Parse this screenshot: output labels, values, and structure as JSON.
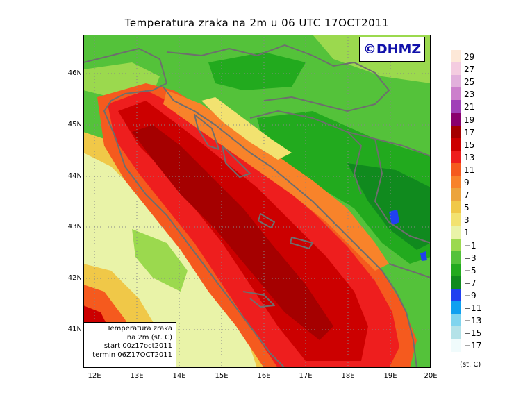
{
  "title": "Temperatura zraka na 2m u 06 UTC 17OCT2011",
  "copyright": "©DHMZ",
  "info_box": {
    "lines": [
      "Temperatura zraka",
      "na 2m (st. C)",
      "start 00z17oct2011",
      "termin 06Z17OCT2011"
    ]
  },
  "lat_labels": [
    "46N",
    "45N",
    "44N",
    "43N",
    "42N",
    "41N"
  ],
  "lon_labels": [
    "12E",
    "13E",
    "14E",
    "15E",
    "16E",
    "17E",
    "18E",
    "19E",
    "20E"
  ],
  "legend": {
    "labels": [
      "29",
      "27",
      "25",
      "23",
      "21",
      "19",
      "17",
      "15",
      "13",
      "11",
      "9",
      "7",
      "5",
      "3",
      "1",
      "−1",
      "−3",
      "−5",
      "−7",
      "−9",
      "−11",
      "−13",
      "−15",
      "−17"
    ],
    "colors": [
      "#fde8d8",
      "#f4cce0",
      "#e2b0dc",
      "#cc7fcc",
      "#a040b8",
      "#8a006e",
      "#a50000",
      "#cc0000",
      "#ee1e1e",
      "#f55a1e",
      "#f8832a",
      "#eca43c",
      "#f0c848",
      "#f2e270",
      "#e9f3a8",
      "#9bd94e",
      "#54c23a",
      "#22aa1e",
      "#108a1e",
      "#2040f0",
      "#10a0f0",
      "#80d4ee",
      "#b4e2e8",
      "#f0fbfc"
    ],
    "unit": "(st. C)"
  },
  "colors": {
    "coastline": "#6e6e6e",
    "grid": "#888888",
    "sea_warm": "#cc0000",
    "sea_hot": "#a50000",
    "land_cool": "#54c23a"
  }
}
